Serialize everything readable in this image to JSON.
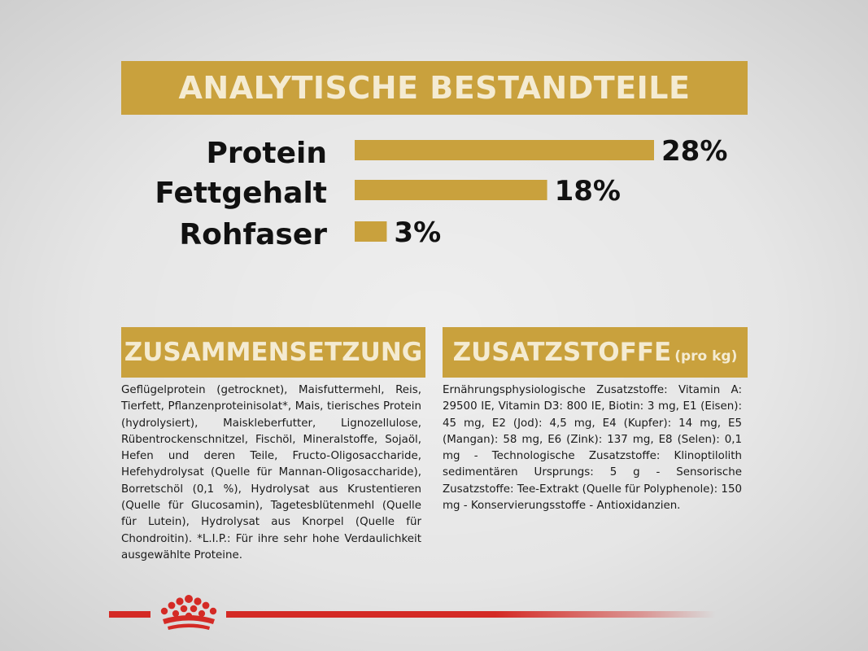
{
  "header": {
    "title": "ANALYTISCHE BESTANDTEILE"
  },
  "colors": {
    "gold": "#c9a13d",
    "banner_text": "#f4ebd2",
    "brand_red": "#d42a25"
  },
  "chart_data": {
    "type": "bar",
    "orientation": "horizontal",
    "categories": [
      "Protein",
      "Fettgehalt",
      "Rohfaser"
    ],
    "values": [
      28,
      18,
      3
    ],
    "value_labels": [
      "28%",
      "18%",
      "3%"
    ],
    "unit": "%",
    "xlim": [
      0,
      28
    ],
    "grid": false
  },
  "sections": {
    "composition": {
      "title": "ZUSAMMENSETZUNG",
      "text": "Geflügelprotein (getrocknet), Maisfuttermehl, Reis, Tierfett, Pflanzenproteinisolat*, Mais, tierisches Protein (hydrolysiert), Maiskleberfutter, Lignozellulose, Rübentrockenschnitzel, Fischöl, Mineralstoffe, Sojaöl, Hefen und deren Teile, Fructo-Oligosaccharide, Hefehydrolysat (Quelle für Mannan-Oligosaccharide), Borretschöl (0,1 %), Hydrolysat aus Krustentieren (Quelle für Glucosamin), Tagetesblütenmehl (Quelle für Lutein), Hydrolysat aus Knorpel (Quelle für Chondroitin). *L.I.P.: Für ihre sehr hohe Verdaulichkeit ausgewählte Proteine."
    },
    "additives": {
      "title": "ZUSATZSTOFFE",
      "subtitle": "(pro kg)",
      "text": "Ernährungsphysiologische Zusatzstoffe: Vitamin A: 29500 IE, Vitamin D3: 800 IE, Biotin: 3 mg, E1 (Eisen): 45 mg, E2 (Jod): 4,5 mg, E4 (Kupfer): 14 mg, E5 (Mangan): 58 mg, E6 (Zink): 137 mg, E8 (Selen): 0,1 mg - Technologische Zusatzstoffe: Klinoptilolith sedimentären Ursprungs: 5 g - Sensorische Zusatzstoffe: Tee-Extrakt (Quelle für Polyphenole): 150 mg - Konservierungsstoffe - Antioxidanzien."
    }
  },
  "footer": {
    "logo_icon": "royal-canin-crown-icon"
  }
}
